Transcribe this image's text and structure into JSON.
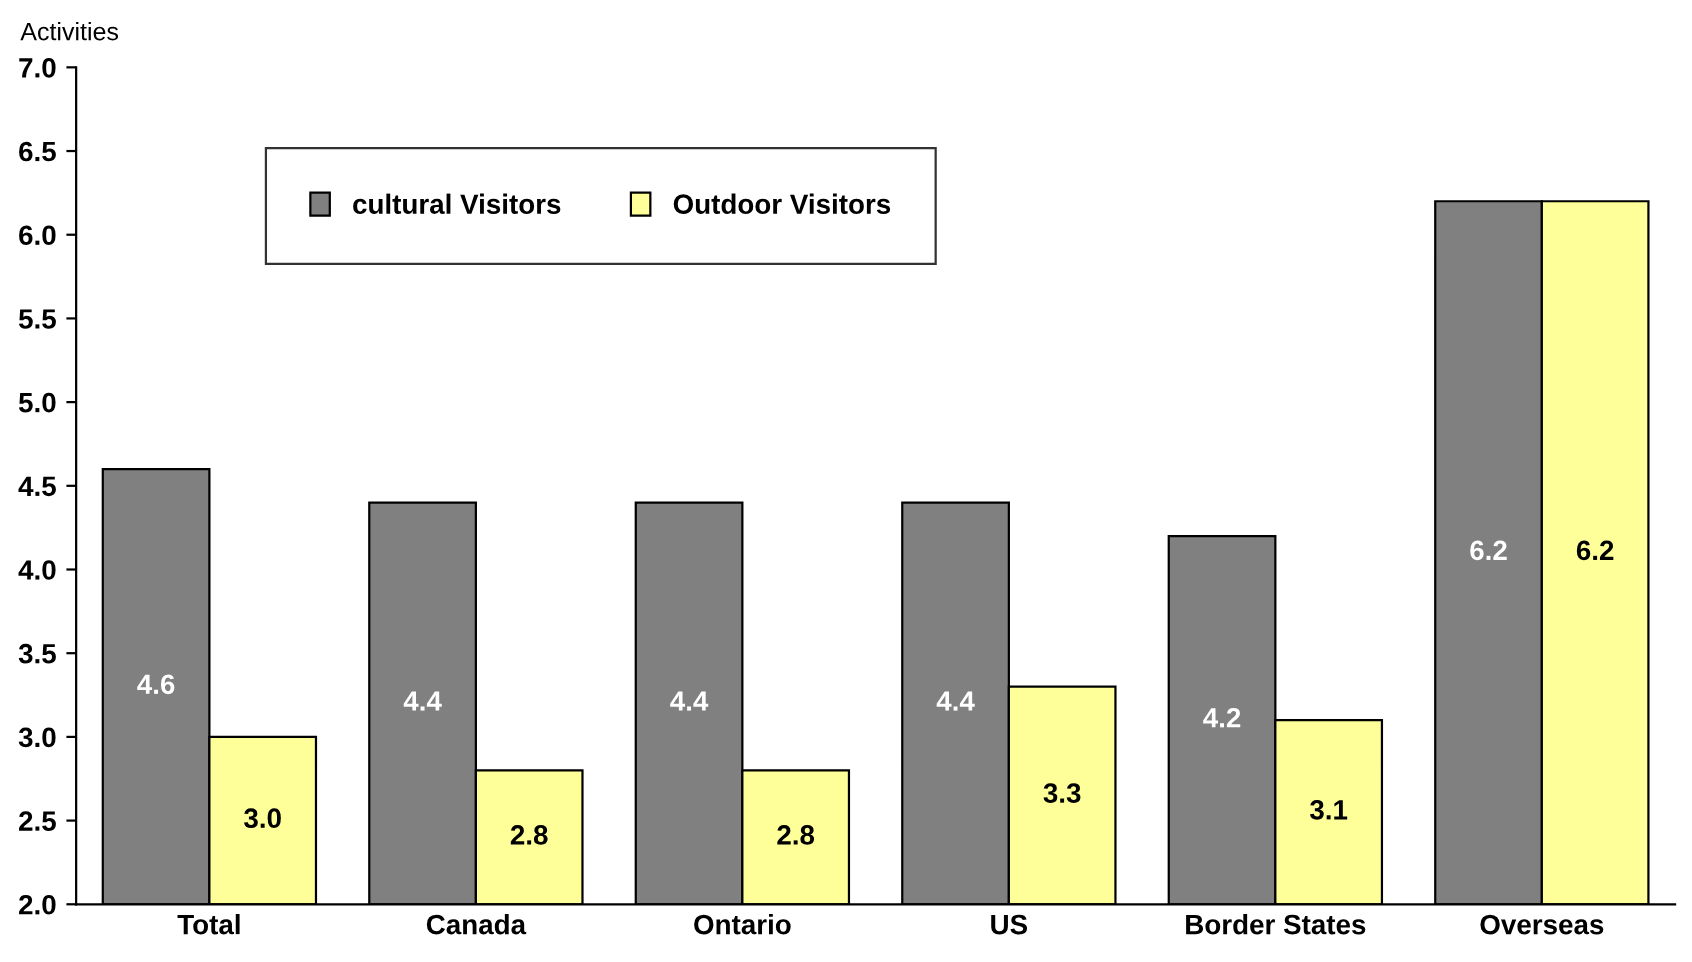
{
  "chart_data": {
    "type": "bar",
    "ylabel": "Activities",
    "categories": [
      "Total",
      "Canada",
      "Ontario",
      "US",
      "Border States",
      "Overseas"
    ],
    "series": [
      {
        "name": "cultural Visitors",
        "color": "#808080",
        "values": [
          4.6,
          4.4,
          4.4,
          4.4,
          4.2,
          6.2
        ],
        "value_labels": [
          "4.6",
          "4.4",
          "4.4",
          "4.4",
          "4.2",
          "6.2"
        ]
      },
      {
        "name": "Outdoor Visitors",
        "color": "#ffff99",
        "values": [
          3.0,
          2.8,
          2.8,
          3.3,
          3.1,
          6.2
        ],
        "value_labels": [
          "3.0",
          "2.8",
          "2.8",
          "3.3",
          "3.1",
          "6.2"
        ]
      }
    ],
    "ylim": [
      2.0,
      7.0
    ],
    "yticks": [
      {
        "value": 2.0,
        "label": "2.0"
      },
      {
        "value": 2.5,
        "label": "2.5"
      },
      {
        "value": 3.0,
        "label": "3.0"
      },
      {
        "value": 3.5,
        "label": "3.5"
      },
      {
        "value": 4.0,
        "label": "4.0"
      },
      {
        "value": 4.5,
        "label": "4.5"
      },
      {
        "value": 5.0,
        "label": "5.0"
      },
      {
        "value": 5.5,
        "label": "5.5"
      },
      {
        "value": 6.0,
        "label": "6.0"
      },
      {
        "value": 6.5,
        "label": "6.5"
      },
      {
        "value": 7.0,
        "label": "7.0"
      }
    ],
    "grid": false,
    "legend": "top left"
  }
}
